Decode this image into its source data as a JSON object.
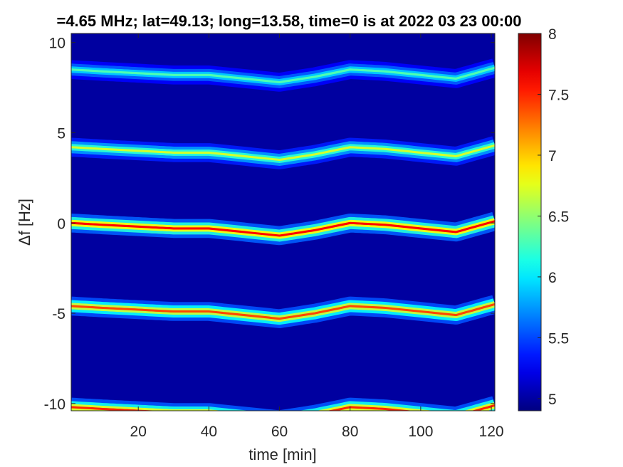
{
  "chart_data": {
    "type": "heatmap",
    "title": "=4.65 MHz;  lat=49.13; long=13.58, time=0 is at 2022 03 23 00:00",
    "xlabel": "time [min]",
    "ylabel": "Δf [Hz]",
    "xlim": [
      1,
      121
    ],
    "ylim": [
      -10.4,
      10.5
    ],
    "xticks": [
      20,
      40,
      60,
      80,
      100,
      120
    ],
    "yticks": [
      -10,
      -5,
      0,
      5,
      10
    ],
    "colorbar": {
      "colormap": "jet",
      "clim": [
        4.9,
        8.0
      ],
      "ticks": [
        5,
        5.5,
        6,
        6.5,
        7,
        7.5,
        8
      ]
    },
    "background_level": 5.0,
    "traces": [
      {
        "offset_hz": 8.5,
        "peak": 6.3,
        "width_hz": 0.35
      },
      {
        "offset_hz": 4.2,
        "peak": 6.7,
        "width_hz": 0.35
      },
      {
        "offset_hz": 0.0,
        "peak": 7.6,
        "width_hz": 0.35
      },
      {
        "offset_hz": -4.6,
        "peak": 7.4,
        "width_hz": 0.35
      },
      {
        "offset_hz": -10.2,
        "peak": 7.5,
        "width_hz": 0.35
      }
    ],
    "common_drift": {
      "time_min": [
        1,
        10,
        20,
        30,
        40,
        50,
        60,
        70,
        80,
        90,
        100,
        110,
        121
      ],
      "delta_hz": [
        0.0,
        -0.1,
        -0.2,
        -0.3,
        -0.3,
        -0.5,
        -0.7,
        -0.4,
        0.0,
        -0.1,
        -0.3,
        -0.5,
        0.1
      ]
    }
  }
}
